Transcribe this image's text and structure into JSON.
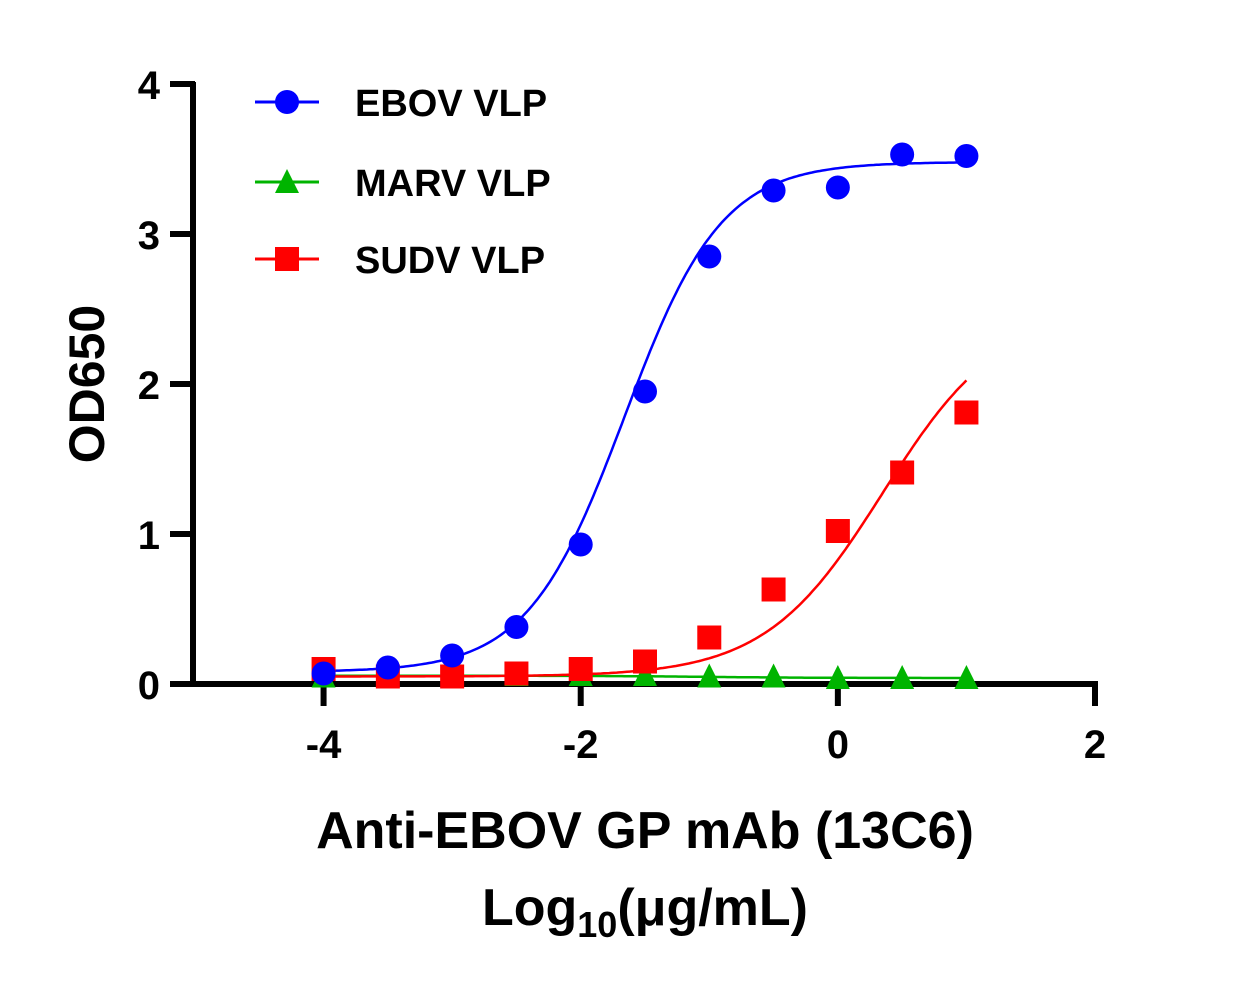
{
  "chart_data": {
    "type": "scatter",
    "title": "",
    "xlabel": "Anti-EBOV GP mAb (13C6)",
    "xlabel_line2_prefix": "Log",
    "xlabel_line2_sub": "10",
    "xlabel_line2_suffix": "(μg/mL)",
    "ylabel": "OD650",
    "xlim": [
      -5,
      2
    ],
    "ylim": [
      0,
      4
    ],
    "xticks": [
      -4,
      -2,
      0,
      2
    ],
    "xtick_labels": [
      "-4",
      "-2",
      "0",
      "2"
    ],
    "yticks": [
      0,
      1,
      2,
      3,
      4
    ],
    "ytick_labels": [
      "0",
      "1",
      "2",
      "3",
      "4"
    ],
    "grid": false,
    "legend_position": "top-left",
    "x": [
      -4,
      -3.5,
      -3,
      -2.5,
      -2,
      -1.5,
      -1,
      -0.5,
      0,
      0.5,
      1
    ],
    "series": [
      {
        "name": "EBOV VLP",
        "color": "#0000ff",
        "marker": "circle",
        "fit": "sigmoidal",
        "values": [
          0.07,
          0.11,
          0.19,
          0.38,
          0.93,
          1.95,
          2.85,
          3.29,
          3.31,
          3.53,
          3.52
        ]
      },
      {
        "name": "MARV VLP",
        "color": "#00b400",
        "marker": "triangle",
        "fit": "sigmoidal",
        "values": [
          0.05,
          0.05,
          0.05,
          0.06,
          0.06,
          0.06,
          0.05,
          0.05,
          0.04,
          0.04,
          0.04
        ]
      },
      {
        "name": "SUDV VLP",
        "color": "#ff0000",
        "marker": "square",
        "fit": "sigmoidal",
        "values": [
          0.1,
          0.05,
          0.05,
          0.07,
          0.1,
          0.15,
          0.31,
          0.63,
          1.02,
          1.41,
          1.81
        ]
      }
    ]
  }
}
